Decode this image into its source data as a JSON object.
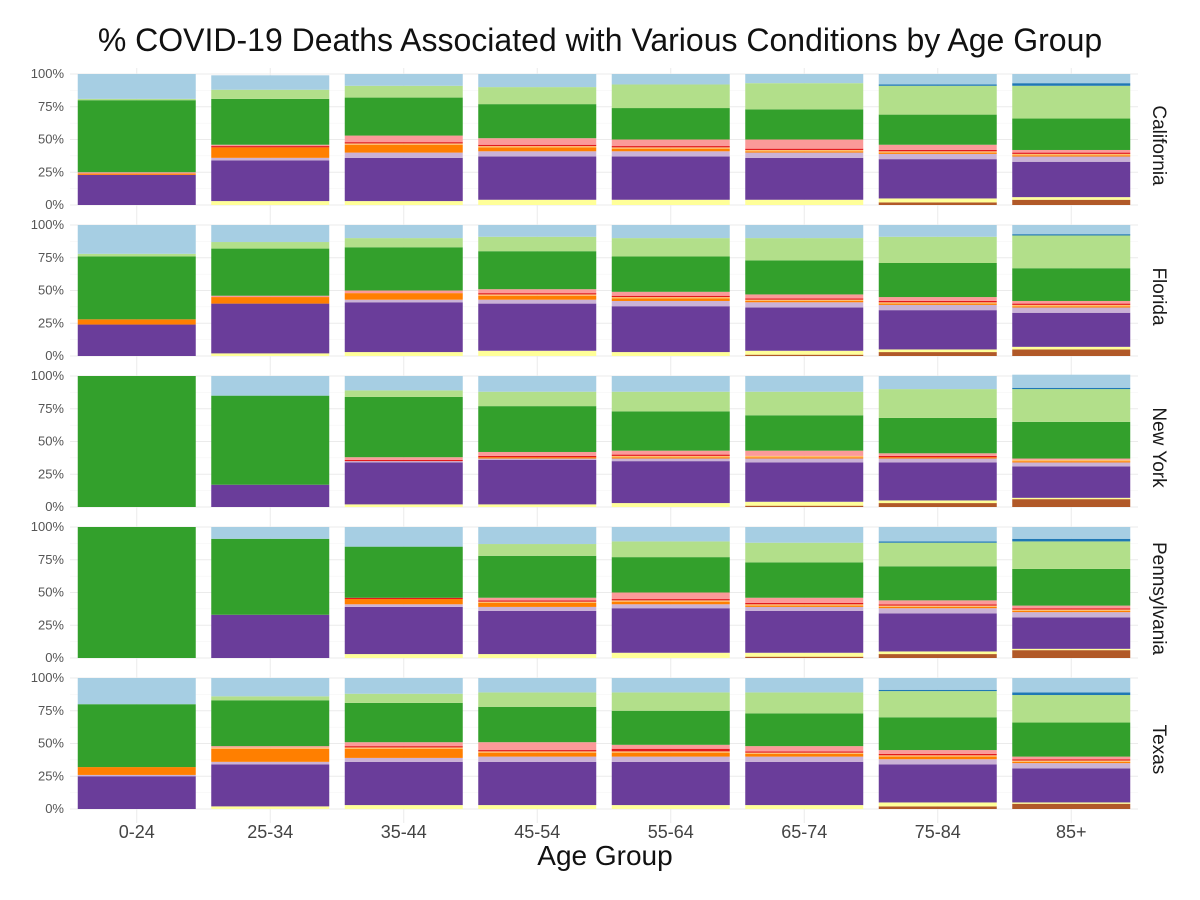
{
  "chart_data": {
    "type": "bar",
    "stacked": true,
    "faceted": true,
    "title": "% COVID-19 Deaths Associated with Various Conditions by Age Group",
    "xlabel": "Age Group",
    "ylabel": "",
    "ylim": [
      0,
      1
    ],
    "y_tick_values": [
      0,
      0.25,
      0.5,
      0.75,
      1
    ],
    "y_tick_labels": [
      "0%",
      "25%",
      "50%",
      "75%",
      "100%"
    ],
    "grid": true,
    "legend": "none",
    "categories": [
      "0-24",
      "25-34",
      "35-44",
      "45-54",
      "55-64",
      "65-74",
      "75-84",
      "85+"
    ],
    "facets": [
      "California",
      "Florida",
      "New York",
      "Pennsylvania",
      "Texas"
    ],
    "stack_colors": [
      "#b15928",
      "#ffff99",
      "#6a3d9a",
      "#cab2d6",
      "#ff7f00",
      "#fdbf6f",
      "#e31a1c",
      "#fb9a99",
      "#33a02c",
      "#b2df8a",
      "#1f78b4",
      "#a6cee3"
    ],
    "panels": [
      {
        "facet": "California",
        "stacks": [
          [
            0,
            0,
            0.23,
            0,
            0.01,
            0,
            0,
            0.01,
            0.55,
            0.01,
            0,
            0.19
          ],
          [
            0,
            0.03,
            0.31,
            0.02,
            0.08,
            0,
            0.01,
            0.01,
            0.35,
            0.07,
            0,
            0.11
          ],
          [
            0,
            0.03,
            0.33,
            0.04,
            0.06,
            0.01,
            0.01,
            0.05,
            0.29,
            0.09,
            0,
            0.09
          ],
          [
            0,
            0.04,
            0.33,
            0.04,
            0.03,
            0.01,
            0.01,
            0.05,
            0.26,
            0.13,
            0,
            0.1
          ],
          [
            0,
            0.04,
            0.33,
            0.04,
            0.02,
            0.01,
            0.01,
            0.05,
            0.24,
            0.18,
            0,
            0.08
          ],
          [
            0,
            0.04,
            0.32,
            0.04,
            0.01,
            0.01,
            0.01,
            0.07,
            0.23,
            0.2,
            0,
            0.07
          ],
          [
            0.02,
            0.03,
            0.3,
            0.04,
            0.01,
            0.01,
            0.01,
            0.04,
            0.23,
            0.22,
            0.01,
            0.08
          ],
          [
            0.04,
            0.02,
            0.27,
            0.04,
            0.01,
            0.01,
            0.01,
            0.02,
            0.24,
            0.25,
            0.02,
            0.07
          ]
        ]
      },
      {
        "facet": "Florida",
        "stacks": [
          [
            0,
            0,
            0.24,
            0,
            0.04,
            0,
            0,
            0,
            0.48,
            0.02,
            0,
            0.22
          ],
          [
            0,
            0.02,
            0.38,
            0,
            0.05,
            0,
            0,
            0.01,
            0.36,
            0.05,
            0,
            0.13
          ],
          [
            0,
            0.03,
            0.38,
            0.02,
            0.05,
            0,
            0,
            0.02,
            0.33,
            0.07,
            0,
            0.1
          ],
          [
            0,
            0.04,
            0.36,
            0.03,
            0.03,
            0.01,
            0.01,
            0.03,
            0.29,
            0.11,
            0,
            0.09
          ],
          [
            0,
            0.03,
            0.35,
            0.04,
            0.02,
            0.01,
            0.01,
            0.03,
            0.27,
            0.14,
            0,
            0.1
          ],
          [
            0.01,
            0.03,
            0.33,
            0.04,
            0.01,
            0.01,
            0.01,
            0.03,
            0.26,
            0.17,
            0,
            0.1
          ],
          [
            0.03,
            0.02,
            0.3,
            0.04,
            0.01,
            0.01,
            0.01,
            0.03,
            0.26,
            0.2,
            0,
            0.09
          ],
          [
            0.05,
            0.02,
            0.26,
            0.04,
            0.01,
            0.01,
            0.01,
            0.02,
            0.25,
            0.25,
            0.01,
            0.07
          ]
        ]
      },
      {
        "facet": "New York",
        "stacks": [
          [
            0,
            0,
            0,
            0,
            0,
            0,
            0,
            0,
            1.0,
            0,
            0,
            0
          ],
          [
            0,
            0,
            0.17,
            0,
            0,
            0,
            0,
            0,
            0.68,
            0,
            0,
            0.15
          ],
          [
            0,
            0.02,
            0.32,
            0.01,
            0,
            0,
            0.01,
            0.02,
            0.46,
            0.05,
            0,
            0.11
          ],
          [
            0,
            0.02,
            0.34,
            0.01,
            0.01,
            0,
            0.01,
            0.03,
            0.35,
            0.11,
            0,
            0.12
          ],
          [
            0,
            0.03,
            0.32,
            0.02,
            0.01,
            0.01,
            0.01,
            0.03,
            0.3,
            0.15,
            0,
            0.12
          ],
          [
            0.01,
            0.03,
            0.3,
            0.03,
            0.01,
            0.01,
            0,
            0.04,
            0.27,
            0.18,
            0,
            0.12
          ],
          [
            0.03,
            0.02,
            0.29,
            0.03,
            0.01,
            0,
            0.01,
            0.02,
            0.27,
            0.22,
            0,
            0.1
          ],
          [
            0.06,
            0.01,
            0.24,
            0.03,
            0.01,
            0.01,
            0,
            0.01,
            0.28,
            0.25,
            0.01,
            0.1
          ]
        ]
      },
      {
        "facet": "Pennsylvania",
        "stacks": [
          [
            0,
            0,
            0,
            0,
            0,
            0,
            0,
            0,
            1.0,
            0,
            0,
            0
          ],
          [
            0,
            0,
            0.33,
            0,
            0,
            0,
            0,
            0,
            0.58,
            0,
            0,
            0.09
          ],
          [
            0,
            0.03,
            0.36,
            0.02,
            0.04,
            0,
            0.01,
            0,
            0.39,
            0,
            0,
            0.15
          ],
          [
            0,
            0.03,
            0.33,
            0.03,
            0.03,
            0.01,
            0.01,
            0.02,
            0.32,
            0.09,
            0,
            0.13
          ],
          [
            0,
            0.04,
            0.34,
            0.03,
            0.02,
            0.01,
            0.01,
            0.05,
            0.27,
            0.12,
            0,
            0.11
          ],
          [
            0.01,
            0.03,
            0.32,
            0.03,
            0.01,
            0.01,
            0.01,
            0.04,
            0.27,
            0.15,
            0,
            0.12
          ],
          [
            0.03,
            0.02,
            0.29,
            0.04,
            0.01,
            0.01,
            0.01,
            0.03,
            0.26,
            0.18,
            0.01,
            0.11
          ],
          [
            0.06,
            0.01,
            0.24,
            0.04,
            0.01,
            0.01,
            0.01,
            0.02,
            0.28,
            0.21,
            0.02,
            0.09
          ]
        ]
      },
      {
        "facet": "Texas",
        "stacks": [
          [
            0,
            0,
            0.25,
            0.01,
            0.06,
            0,
            0,
            0,
            0.48,
            0,
            0,
            0.2
          ],
          [
            0,
            0.02,
            0.32,
            0.02,
            0.1,
            0.01,
            0,
            0.01,
            0.35,
            0.03,
            0,
            0.14
          ],
          [
            0,
            0.03,
            0.33,
            0.03,
            0.07,
            0.01,
            0.01,
            0.03,
            0.3,
            0.07,
            0,
            0.12
          ],
          [
            0,
            0.03,
            0.33,
            0.04,
            0.03,
            0.01,
            0.01,
            0.06,
            0.27,
            0.11,
            0,
            0.11
          ],
          [
            0,
            0.03,
            0.33,
            0.04,
            0.03,
            0.01,
            0.02,
            0.03,
            0.26,
            0.14,
            0,
            0.11
          ],
          [
            0,
            0.03,
            0.33,
            0.04,
            0.02,
            0.01,
            0.01,
            0.04,
            0.25,
            0.16,
            0,
            0.11
          ],
          [
            0.02,
            0.03,
            0.29,
            0.04,
            0.02,
            0.01,
            0.01,
            0.03,
            0.25,
            0.2,
            0.01,
            0.09
          ],
          [
            0.04,
            0.01,
            0.26,
            0.04,
            0.01,
            0.01,
            0.01,
            0.02,
            0.26,
            0.21,
            0.02,
            0.11
          ]
        ]
      }
    ]
  }
}
